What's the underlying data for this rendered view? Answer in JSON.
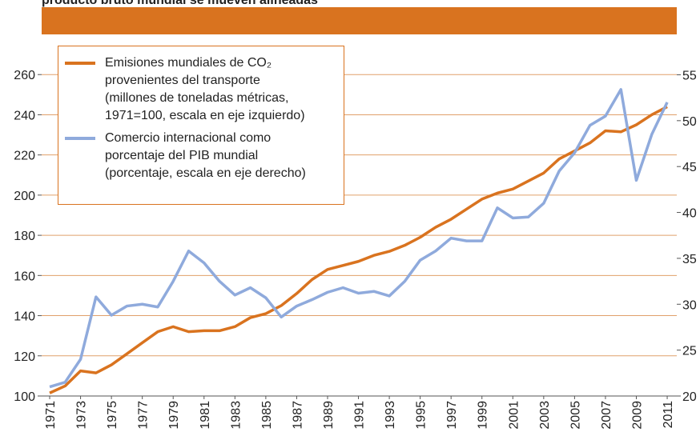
{
  "chart_data": {
    "type": "line",
    "title": "producto bruto mundial se mueven alineadas",
    "x": [
      1971,
      1972,
      1973,
      1974,
      1975,
      1976,
      1977,
      1978,
      1979,
      1980,
      1981,
      1982,
      1983,
      1984,
      1985,
      1986,
      1987,
      1988,
      1989,
      1990,
      1991,
      1992,
      1993,
      1994,
      1995,
      1996,
      1997,
      1998,
      1999,
      2000,
      2001,
      2002,
      2003,
      2004,
      2005,
      2006,
      2007,
      2008,
      2009,
      2010,
      2011
    ],
    "xlim": [
      1970.48,
      2011.62
    ],
    "xticks": [
      1971,
      1973,
      1975,
      1977,
      1979,
      1981,
      1983,
      1985,
      1987,
      1989,
      1991,
      1993,
      1995,
      1997,
      1999,
      2001,
      2003,
      2005,
      2007,
      2009,
      2011
    ],
    "ylim": [
      100,
      280
    ],
    "yticks": [
      100,
      120,
      140,
      160,
      180,
      200,
      220,
      240,
      260
    ],
    "y2lim": [
      20,
      59.4
    ],
    "y2ticks": [
      20,
      25,
      30,
      35,
      40,
      45,
      50,
      55
    ],
    "grid": true,
    "legend": "upper left",
    "series": [
      {
        "name": "Emisiones mundiales de CO₂\nprovenientes del transporte\n(millones de toneladas métricas,\n1971=100, escala en eje izquierdo)",
        "color": "#d9731f",
        "axis": "y",
        "values": [
          101.5,
          105,
          112.5,
          111.5,
          115.5,
          121,
          126.5,
          132,
          134.5,
          132,
          132.5,
          132.5,
          134.5,
          139,
          141,
          145,
          151,
          158,
          163,
          165,
          167,
          170,
          172,
          175,
          179,
          184,
          188,
          193,
          198,
          201,
          203,
          207,
          211,
          218,
          222,
          226,
          232,
          231.5,
          235,
          240,
          244
        ]
      },
      {
        "name": "Comercio internacional como\nporcentaje del PIB mundial\n(porcentaje, escala en eje derecho)",
        "color": "#8faadc",
        "axis": "y2",
        "values": [
          21,
          21.5,
          24,
          30.8,
          28.8,
          29.8,
          30,
          29.7,
          32.5,
          35.8,
          34.5,
          32.5,
          31,
          31.8,
          30.7,
          28.6,
          29.8,
          30.5,
          31.3,
          31.8,
          31.2,
          31.4,
          30.9,
          32.5,
          34.8,
          35.8,
          37.2,
          36.9,
          36.9,
          40.5,
          39.4,
          39.5,
          41,
          44.5,
          46.5,
          49.5,
          50.5,
          53.4,
          43.5,
          48.5,
          52
        ]
      }
    ]
  }
}
